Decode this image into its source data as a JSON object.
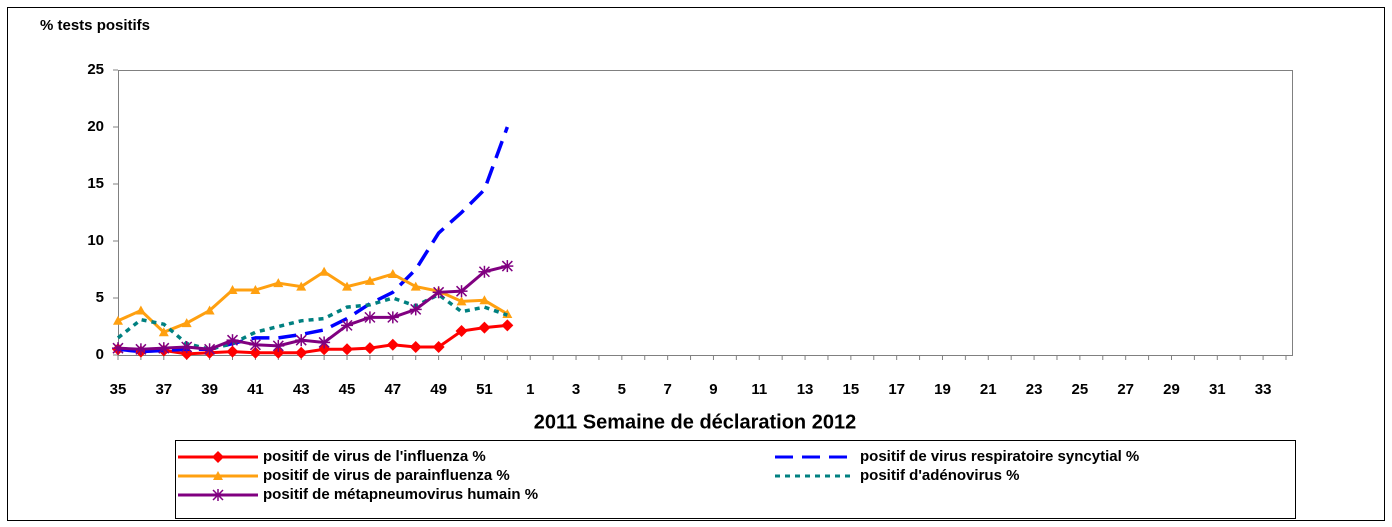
{
  "chart_data": {
    "type": "line",
    "ylabel": "% tests positifs",
    "xlabel": "2011  Semaine de déclaration  2012",
    "categories": [
      "35",
      null,
      "37",
      null,
      "39",
      null,
      "41",
      null,
      "43",
      null,
      "45",
      null,
      "47",
      null,
      "49",
      null,
      "51",
      null,
      "1",
      null,
      "3",
      null,
      "5",
      null,
      "7",
      null,
      "9",
      null,
      "11",
      null,
      "13",
      null,
      "15",
      null,
      "17",
      null,
      "19",
      null,
      "21",
      null,
      "23",
      null,
      "25",
      null,
      "27",
      null,
      "29",
      null,
      "31",
      null,
      "33",
      null
    ],
    "ylim": [
      0,
      25
    ],
    "yticks": [
      0,
      5,
      10,
      15,
      20,
      25
    ],
    "legend": "bottom",
    "series": [
      {
        "name": "positif de virus de l'influenza %",
        "color": "#ff0000",
        "dash": "solid",
        "marker": "diamond",
        "values": [
          0.5,
          0.3,
          0.4,
          0.1,
          0.2,
          0.3,
          0.2,
          0.2,
          0.2,
          0.5,
          0.5,
          0.6,
          0.9,
          0.7,
          0.7,
          2.1,
          2.4,
          2.6,
          null,
          null,
          null,
          null,
          null,
          null,
          null,
          null,
          null,
          null,
          null,
          null,
          null,
          null,
          null,
          null,
          null,
          null,
          null,
          null,
          null,
          null,
          null,
          null,
          null,
          null,
          null,
          null,
          null,
          null,
          null,
          null,
          null,
          null
        ]
      },
      {
        "name": "positif de virus respiratoire syncytial %",
        "color": "#0000ff",
        "dash": "long",
        "marker": "none",
        "values": [
          0.5,
          0.3,
          0.4,
          0.5,
          0.5,
          1.0,
          1.5,
          1.5,
          1.8,
          2.2,
          3.2,
          4.5,
          5.5,
          7.5,
          10.7,
          12.5,
          14.5,
          20.0,
          null,
          null,
          null,
          null,
          null,
          null,
          null,
          null,
          null,
          null,
          null,
          null,
          null,
          null,
          null,
          null,
          null,
          null,
          null,
          null,
          null,
          null,
          null,
          null,
          null,
          null,
          null,
          null,
          null,
          null,
          null,
          null,
          null,
          null
        ]
      },
      {
        "name": "positif de virus de parainfluenza %",
        "color": "#ffa010",
        "dash": "solid",
        "marker": "triangle",
        "values": [
          3.0,
          3.9,
          2.0,
          2.8,
          3.9,
          5.7,
          5.7,
          6.3,
          6.0,
          7.3,
          6.0,
          6.5,
          7.1,
          6.0,
          5.6,
          4.7,
          4.8,
          3.6,
          null,
          null,
          null,
          null,
          null,
          null,
          null,
          null,
          null,
          null,
          null,
          null,
          null,
          null,
          null,
          null,
          null,
          null,
          null,
          null,
          null,
          null,
          null,
          null,
          null,
          null,
          null,
          null,
          null,
          null,
          null,
          null,
          null,
          null
        ]
      },
      {
        "name": "positif d'adénovirus %",
        "color": "#008080",
        "dash": "dotted",
        "marker": "none",
        "values": [
          1.5,
          3.1,
          2.7,
          1.0,
          0.5,
          1.0,
          2.0,
          2.5,
          3.0,
          3.2,
          4.2,
          4.4,
          5.0,
          4.3,
          5.3,
          3.8,
          4.2,
          3.5,
          null,
          null,
          null,
          null,
          null,
          null,
          null,
          null,
          null,
          null,
          null,
          null,
          null,
          null,
          null,
          null,
          null,
          null,
          null,
          null,
          null,
          null,
          null,
          null,
          null,
          null,
          null,
          null,
          null,
          null,
          null,
          null,
          null,
          null
        ]
      },
      {
        "name": "positif de métapneumovirus humain %",
        "color": "#800080",
        "dash": "solid",
        "marker": "asterisk",
        "values": [
          0.6,
          0.5,
          0.6,
          0.7,
          0.5,
          1.3,
          0.9,
          0.8,
          1.3,
          1.1,
          2.6,
          3.3,
          3.3,
          4.0,
          5.5,
          5.6,
          7.3,
          7.8,
          null,
          null,
          null,
          null,
          null,
          null,
          null,
          null,
          null,
          null,
          null,
          null,
          null,
          null,
          null,
          null,
          null,
          null,
          null,
          null,
          null,
          null,
          null,
          null,
          null,
          null,
          null,
          null,
          null,
          null,
          null,
          null,
          null,
          null
        ]
      }
    ]
  }
}
